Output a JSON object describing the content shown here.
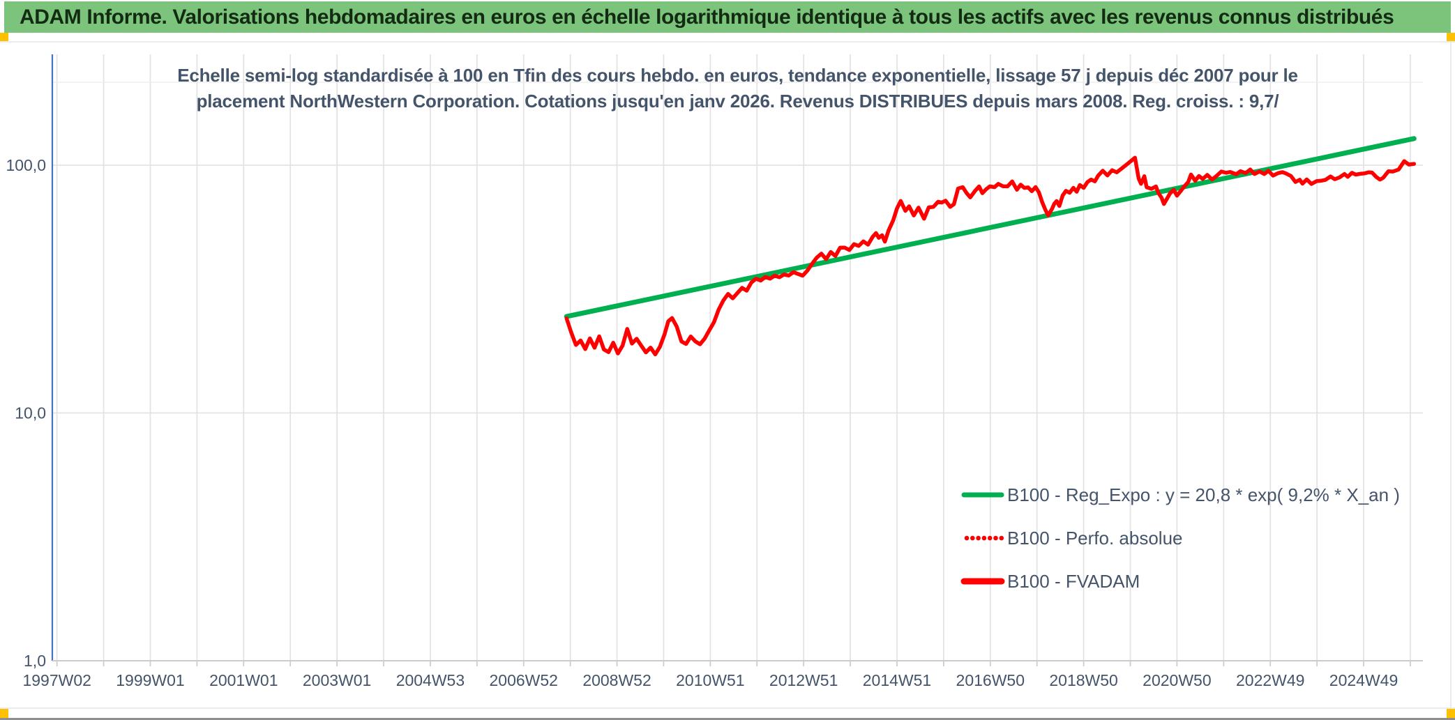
{
  "header": {
    "title": "ADAM Informe. Valorisations hebdomadaires en euros en échelle logarithmique identique à tous les actifs avec les revenus connus distribués"
  },
  "chart": {
    "subtitle_line1": "Echelle semi-log standardisée à 100 en Tfin des cours hebdo. en euros, tendance exponentielle, lissage 57 j depuis déc 2007 pour le",
    "subtitle_line2": "placement NorthWestern Corporation. Cotations jusqu'en janv 2026. Revenus DISTRIBUES depuis mars 2008. Reg. croiss. : 9,7/"
  },
  "chart_data": {
    "type": "line",
    "title": "Echelle semi-log standardisée à 100 en Tfin des cours hebdo. en euros, tendance exponentielle, lissage 57 j depuis déc 2007 pour le placement NorthWestern Corporation. Cotations jusqu'en janv 2026. Revenus DISTRIBUES depuis mars 2008. Reg. croiss. : 9,7/",
    "y_scale": "log10",
    "x_range": [
      1996.9,
      2026.27
    ],
    "y_log_range": [
      1,
      216
    ],
    "grid": {
      "x_interval_years": 1,
      "x_grid_start": 1997.0,
      "grid_on": true
    },
    "x_tick_labels": [
      "1997W02",
      "1999W01",
      "2001W01",
      "2003W01",
      "2004W53",
      "2006W52",
      "2008W52",
      "2010W51",
      "2012W51",
      "2014W51",
      "2016W50",
      "2018W50",
      "2020W50",
      "2022W49",
      "2024W49"
    ],
    "x_tick_positions": [
      1997.0,
      1999.0,
      2001.0,
      2003.0,
      2005.0,
      2007.0,
      2009.0,
      2011.0,
      2013.0,
      2015.0,
      2017.0,
      2019.0,
      2021.0,
      2023.0,
      2025.0
    ],
    "y_tick_labels": [
      "100,0",
      "10,0",
      "1,0"
    ],
    "y_tick_values": [
      100,
      10,
      1
    ],
    "colors": {
      "trend_green": "#00B050",
      "series_red": "#FF0000",
      "axis_blue": "#4472C4",
      "grid_gray": "#e2e2e2",
      "axis_gray": "#cbcbcb",
      "text_blue_gray": "#44546a",
      "header_green": "#7cc37c",
      "marker_yellow": "#ffc000"
    },
    "legend": {
      "position": "inside-right",
      "entries": [
        {
          "label": "B100 - Reg_Expo : y = 20,8 * exp( 9,2% *  X_an )",
          "color": "#00B050",
          "style": "solid"
        },
        {
          "label": "B100 - Perfo. absolue",
          "color": "#FF0000",
          "style": "dotted"
        },
        {
          "label": "B100 - FVADAM",
          "color": "#FF0000",
          "style": "solid"
        }
      ]
    },
    "series": [
      {
        "name": "B100 - Reg_Expo",
        "style": "solid",
        "color": "#00B050",
        "equation": "y = 20,8 * exp( 9,2% * X_an )",
        "points": [
          [
            2007.92,
            24.5
          ],
          [
            2026.08,
            128
          ]
        ]
      },
      {
        "name": "B100 - Perfo. absolue",
        "style": "dotted",
        "color": "#FF0000",
        "note": "coincides with B100 - FVADAM curve; visible only in legend",
        "points": []
      },
      {
        "name": "B100 - FVADAM",
        "style": "solid",
        "color": "#FF0000",
        "points": [
          [
            2007.92,
            24.0
          ],
          [
            2008.02,
            21.0
          ],
          [
            2008.12,
            18.9
          ],
          [
            2008.22,
            19.6
          ],
          [
            2008.32,
            18.2
          ],
          [
            2008.42,
            19.8
          ],
          [
            2008.52,
            18.4
          ],
          [
            2008.62,
            20.3
          ],
          [
            2008.72,
            18.2
          ],
          [
            2008.82,
            17.5
          ],
          [
            2008.92,
            19.2
          ],
          [
            2009.02,
            17.3
          ],
          [
            2009.12,
            18.8
          ],
          [
            2009.22,
            21.9
          ],
          [
            2009.32,
            19.0
          ],
          [
            2009.42,
            19.9
          ],
          [
            2009.52,
            18.6
          ],
          [
            2009.62,
            17.7
          ],
          [
            2009.72,
            18.3
          ],
          [
            2009.82,
            17.3
          ],
          [
            2009.92,
            18.3
          ],
          [
            2010.02,
            20.9
          ],
          [
            2010.1,
            23.4
          ],
          [
            2010.18,
            24.3
          ],
          [
            2010.28,
            22.2
          ],
          [
            2010.38,
            19.4
          ],
          [
            2010.48,
            19.0
          ],
          [
            2010.58,
            20.4
          ],
          [
            2010.68,
            19.5
          ],
          [
            2010.78,
            18.8
          ],
          [
            2010.88,
            20.0
          ],
          [
            2010.98,
            21.5
          ],
          [
            2011.08,
            23.5
          ],
          [
            2011.18,
            26.0
          ],
          [
            2011.28,
            28.5
          ],
          [
            2011.38,
            30.0
          ],
          [
            2011.48,
            29.2
          ],
          [
            2011.58,
            30.5
          ],
          [
            2011.68,
            32.0
          ],
          [
            2011.78,
            31.0
          ],
          [
            2011.88,
            33.5
          ],
          [
            2011.98,
            35.0
          ],
          [
            2012.08,
            34.2
          ],
          [
            2012.18,
            35.5
          ],
          [
            2012.28,
            34.5
          ],
          [
            2012.38,
            36.0
          ],
          [
            2012.48,
            35.2
          ],
          [
            2012.58,
            36.5
          ],
          [
            2012.68,
            35.6
          ],
          [
            2012.78,
            37.0
          ],
          [
            2012.88,
            36.3
          ],
          [
            2012.98,
            36.0
          ],
          [
            2013.08,
            37.6
          ],
          [
            2013.18,
            39.8
          ],
          [
            2013.28,
            42.3
          ],
          [
            2013.38,
            43.8
          ],
          [
            2013.48,
            42.1
          ],
          [
            2013.58,
            44.4
          ],
          [
            2013.68,
            43.1
          ],
          [
            2013.78,
            46.0
          ],
          [
            2013.88,
            46.8
          ],
          [
            2013.98,
            45.4
          ],
          [
            2014.08,
            48.2
          ],
          [
            2014.18,
            46.9
          ],
          [
            2014.28,
            49.2
          ],
          [
            2014.38,
            47.9
          ],
          [
            2014.48,
            51.5
          ],
          [
            2014.55,
            53.3
          ],
          [
            2014.61,
            50.5
          ],
          [
            2014.68,
            52.3
          ],
          [
            2014.74,
            49.0
          ],
          [
            2014.82,
            55.0
          ],
          [
            2014.92,
            59.5
          ],
          [
            2015.0,
            67.0
          ],
          [
            2015.08,
            71.3
          ],
          [
            2015.18,
            65.9
          ],
          [
            2015.26,
            68.2
          ],
          [
            2015.36,
            62.6
          ],
          [
            2015.46,
            67.1
          ],
          [
            2015.58,
            60.7
          ],
          [
            2015.68,
            68.0
          ],
          [
            2015.78,
            67.7
          ],
          [
            2015.88,
            71.3
          ],
          [
            2015.96,
            70.0
          ],
          [
            2016.04,
            72.4
          ],
          [
            2016.14,
            67.7
          ],
          [
            2016.22,
            70.0
          ],
          [
            2016.31,
            79.8
          ],
          [
            2016.41,
            81.6
          ],
          [
            2016.49,
            77.1
          ],
          [
            2016.57,
            74.5
          ],
          [
            2016.67,
            78.6
          ],
          [
            2016.76,
            81.6
          ],
          [
            2016.83,
            77.1
          ],
          [
            2016.91,
            79.8
          ],
          [
            2016.99,
            82.8
          ],
          [
            2017.09,
            81.0
          ],
          [
            2017.17,
            84.2
          ],
          [
            2017.27,
            81.6
          ],
          [
            2017.37,
            82.8
          ],
          [
            2017.47,
            85.8
          ],
          [
            2017.57,
            79.8
          ],
          [
            2017.65,
            82.8
          ],
          [
            2017.73,
            81.0
          ],
          [
            2017.81,
            81.6
          ],
          [
            2017.89,
            78.6
          ],
          [
            2017.97,
            81.6
          ],
          [
            2018.04,
            77.1
          ],
          [
            2018.11,
            71.3
          ],
          [
            2018.18,
            65.9
          ],
          [
            2018.24,
            63.2
          ],
          [
            2018.32,
            65.9
          ],
          [
            2018.37,
            70.0
          ],
          [
            2018.42,
            71.3
          ],
          [
            2018.48,
            69.0
          ],
          [
            2018.55,
            75.3
          ],
          [
            2018.62,
            78.6
          ],
          [
            2018.7,
            77.1
          ],
          [
            2018.78,
            81.0
          ],
          [
            2018.85,
            78.6
          ],
          [
            2018.92,
            82.8
          ],
          [
            2019.0,
            81.0
          ],
          [
            2019.08,
            84.7
          ],
          [
            2019.16,
            88.2
          ],
          [
            2019.24,
            85.8
          ],
          [
            2019.31,
            91.1
          ],
          [
            2019.41,
            94.1
          ],
          [
            2019.51,
            91.1
          ],
          [
            2019.61,
            95.4
          ],
          [
            2019.71,
            94.0
          ],
          [
            2019.82,
            97.0
          ],
          [
            2019.95,
            101.0
          ],
          [
            2020.1,
            107.4
          ],
          [
            2020.18,
            88.2
          ],
          [
            2020.23,
            84.7
          ],
          [
            2020.3,
            89.5
          ],
          [
            2020.35,
            81.6
          ],
          [
            2020.45,
            79.8
          ],
          [
            2020.55,
            82.8
          ],
          [
            2020.6,
            77.1
          ],
          [
            2020.67,
            74.0
          ],
          [
            2020.72,
            69.3
          ],
          [
            2020.85,
            77.1
          ],
          [
            2020.93,
            79.8
          ],
          [
            2021.0,
            75.3
          ],
          [
            2021.08,
            78.6
          ],
          [
            2021.16,
            81.6
          ],
          [
            2021.24,
            86.0
          ],
          [
            2021.3,
            91.5
          ],
          [
            2021.39,
            87.0
          ],
          [
            2021.47,
            89.5
          ],
          [
            2021.55,
            88.2
          ],
          [
            2021.65,
            91.1
          ],
          [
            2021.75,
            88.2
          ],
          [
            2021.83,
            89.5
          ],
          [
            2021.95,
            94.0
          ],
          [
            2022.05,
            93.0
          ],
          [
            2022.14,
            94.0
          ],
          [
            2022.27,
            92.4
          ],
          [
            2022.36,
            94.0
          ],
          [
            2022.47,
            93.0
          ],
          [
            2022.57,
            95.4
          ],
          [
            2022.66,
            93.0
          ],
          [
            2022.77,
            94.0
          ],
          [
            2022.87,
            92.4
          ],
          [
            2022.96,
            94.0
          ],
          [
            2023.06,
            91.1
          ],
          [
            2023.17,
            93.0
          ],
          [
            2023.26,
            94.0
          ],
          [
            2023.33,
            92.4
          ],
          [
            2023.44,
            90.0
          ],
          [
            2023.54,
            85.8
          ],
          [
            2023.63,
            87.3
          ],
          [
            2023.69,
            84.7
          ],
          [
            2023.78,
            86.8
          ],
          [
            2023.88,
            84.2
          ],
          [
            2023.99,
            85.8
          ],
          [
            2024.08,
            87.3
          ],
          [
            2024.18,
            86.8
          ],
          [
            2024.29,
            90.0
          ],
          [
            2024.38,
            87.3
          ],
          [
            2024.48,
            89.5
          ],
          [
            2024.59,
            92.4
          ],
          [
            2024.66,
            89.5
          ],
          [
            2024.75,
            93.0
          ],
          [
            2024.83,
            91.1
          ],
          [
            2024.93,
            93.0
          ],
          [
            2025.01,
            92.4
          ],
          [
            2025.11,
            94.0
          ],
          [
            2025.18,
            92.4
          ],
          [
            2025.27,
            90.0
          ],
          [
            2025.35,
            87.3
          ],
          [
            2025.42,
            89.5
          ],
          [
            2025.53,
            94.0
          ],
          [
            2025.63,
            94.0
          ],
          [
            2025.75,
            96.0
          ],
          [
            2025.87,
            104.0
          ],
          [
            2025.97,
            101.0
          ],
          [
            2026.08,
            100.5
          ]
        ]
      }
    ]
  }
}
